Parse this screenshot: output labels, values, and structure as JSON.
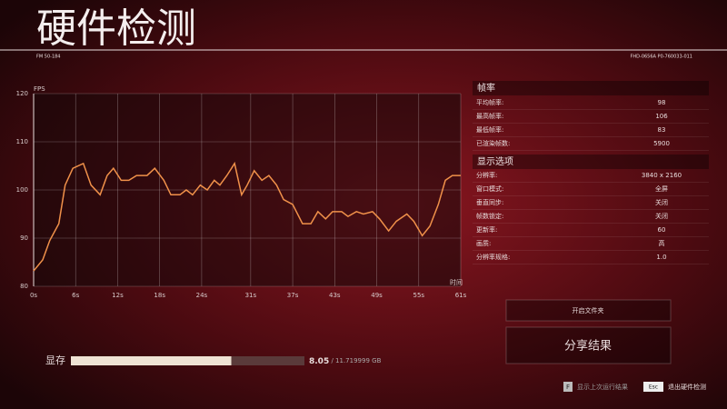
{
  "header": {
    "title": "硬件检测",
    "code_left": "FM 50-184",
    "code_right": "FHD-0656A P0-760033-011"
  },
  "chart_data": {
    "type": "line",
    "y_label": "FPS",
    "x_label": "时间",
    "xlim": [
      0,
      61
    ],
    "ylim": [
      80,
      120
    ],
    "xticks": [
      {
        "value": 0,
        "label": "0s"
      },
      {
        "value": 6,
        "label": "6s"
      },
      {
        "value": 12,
        "label": "12s"
      },
      {
        "value": 18,
        "label": "18s"
      },
      {
        "value": 24,
        "label": "24s"
      },
      {
        "value": 31,
        "label": "31s"
      },
      {
        "value": 37,
        "label": "37s"
      },
      {
        "value": 43,
        "label": "43s"
      },
      {
        "value": 49,
        "label": "49s"
      },
      {
        "value": 55,
        "label": "55s"
      },
      {
        "value": 61,
        "label": "61s"
      }
    ],
    "yticks": [
      80,
      90,
      100,
      110,
      120
    ],
    "grid": true,
    "color": "#f0914a",
    "x": [
      0,
      1.3,
      2.3,
      3.6,
      4.5,
      5.6,
      7.1,
      8.2,
      9.5,
      10.5,
      11.4,
      12.5,
      13.6,
      14.7,
      16.2,
      17.3,
      18.6,
      19.6,
      20.9,
      21.8,
      22.7,
      23.8,
      24.8,
      25.8,
      26.6,
      27.6,
      28.7,
      29.7,
      30.5,
      31.5,
      32.6,
      33.6,
      34.7,
      35.7,
      37,
      38.4,
      39.6,
      40.6,
      41.7,
      42.7,
      44,
      44.9,
      46.1,
      47.1,
      48.4,
      49.4,
      50.7,
      51.8,
      53.3,
      54.3,
      55.5,
      56.6,
      57.8,
      58.8,
      59.8,
      61
    ],
    "values": [
      83.2,
      85.5,
      89.5,
      93,
      101,
      104.5,
      105.5,
      101,
      99,
      103,
      104.5,
      102,
      102,
      103,
      103,
      104.5,
      102,
      99,
      99,
      100,
      99,
      101,
      100,
      102,
      101,
      103,
      105.5,
      99,
      101,
      104,
      102,
      103,
      101,
      98,
      97,
      93,
      93,
      95.5,
      94,
      95.5,
      95.5,
      94.5,
      95.5,
      95,
      95.5,
      94,
      91.5,
      93.5,
      95,
      93.5,
      90.5,
      92.5,
      97,
      102,
      103,
      103
    ]
  },
  "framerate": {
    "title": "帧率",
    "rows": [
      [
        "平均帧率:",
        98
      ],
      [
        "最高帧率:",
        106
      ],
      [
        "最低帧率:",
        83
      ],
      [
        "已渲染帧数:",
        5900
      ]
    ]
  },
  "display": {
    "title": "显示选项",
    "rows": [
      [
        "分辨率:",
        "3840 x 2160"
      ],
      [
        "窗口模式:",
        "全屏"
      ],
      [
        "垂直同步:",
        "关闭"
      ],
      [
        "帧数锁定:",
        "关闭"
      ],
      [
        "更新率:",
        60
      ],
      [
        "画质:",
        "高"
      ],
      [
        "分辨率规格:",
        "1.0"
      ]
    ]
  },
  "buttons": {
    "open_folder": "开启文件夹",
    "share": "分享结果"
  },
  "memory": {
    "label": "显存",
    "used": 8.05,
    "separator": "/",
    "total": 11.719999,
    "unit": "GB"
  },
  "footer": {
    "key_last": "F",
    "last_run": "显示上次运行结果",
    "key_exit": "Esc",
    "exit": "退出硬件检测"
  }
}
